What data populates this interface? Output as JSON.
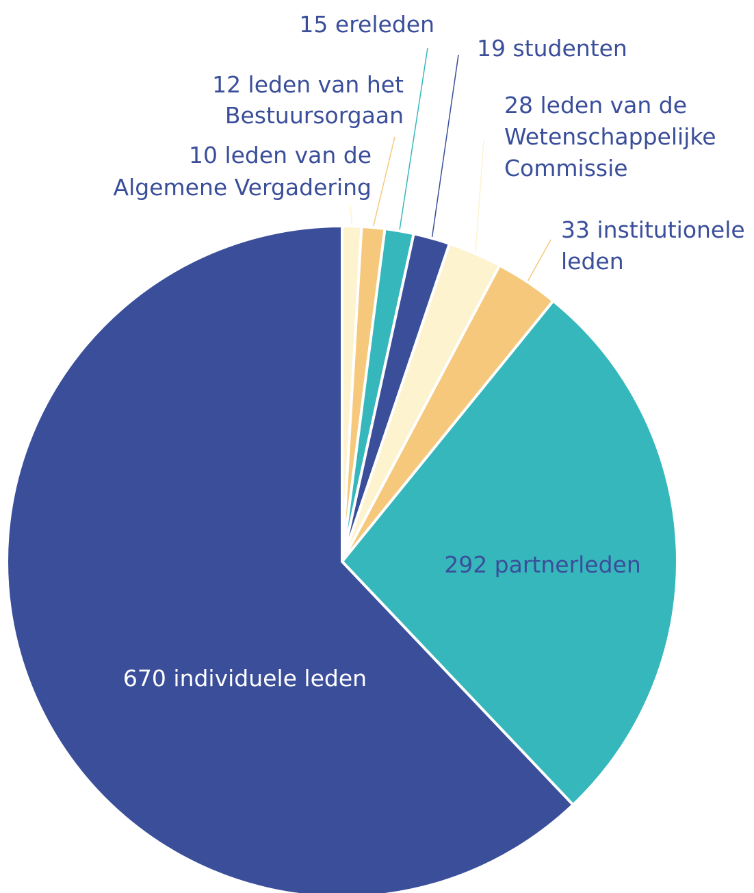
{
  "chart_data": {
    "type": "pie",
    "categories": [
      [
        "10 leden van de",
        "Algemene Vergadering"
      ],
      [
        "12 leden van het",
        "Bestuursorgaan"
      ],
      [
        "15 ereleden"
      ],
      [
        "19 studenten"
      ],
      [
        "28 leden van de",
        "Wetenschappelijke",
        "Commissie"
      ],
      [
        "33 institutionele",
        "leden"
      ],
      [
        "292 partnerleden"
      ],
      [
        "670 individuele leden"
      ]
    ],
    "values": [
      10,
      12,
      15,
      19,
      28,
      33,
      292,
      670
    ],
    "colors": [
      "#fdf3cf",
      "#f5c87c",
      "#36b7bc",
      "#3a4e9a",
      "#fdf3cf",
      "#f5c87c",
      "#36b7bc",
      "#3a4e9a"
    ]
  }
}
